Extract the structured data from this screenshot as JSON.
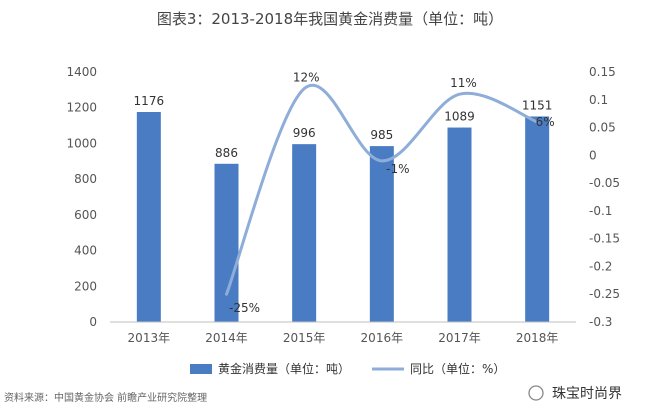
{
  "chart_data": {
    "type": "bar+line",
    "title": "图表3：2013-2018年我国黄金消费量（单位：吨）",
    "categories": [
      "2013年",
      "2014年",
      "2015年",
      "2016年",
      "2017年",
      "2018年"
    ],
    "series": [
      {
        "name": "黄金消费量（单位：吨）",
        "type": "bar",
        "axis": "left",
        "values": [
          1176,
          886,
          996,
          985,
          1089,
          1151
        ],
        "labels": [
          "1176",
          "886",
          "996",
          "985",
          "1089",
          "1151"
        ],
        "color": "#4a7cc4"
      },
      {
        "name": "同比（单位：%）",
        "type": "line",
        "axis": "right",
        "values": [
          null,
          -0.25,
          0.12,
          -0.01,
          0.11,
          0.06
        ],
        "labels": [
          "",
          "-25%",
          "12%",
          "-1%",
          "11%",
          "6%"
        ],
        "color": "#8fadd9"
      }
    ],
    "y_left": {
      "min": 0,
      "max": 1400,
      "step": 200,
      "ticks": [
        "0",
        "200",
        "400",
        "600",
        "800",
        "1000",
        "1200",
        "1400"
      ]
    },
    "y_right": {
      "min": -0.3,
      "max": 0.15,
      "ticks": [
        "-0.3",
        "-0.25",
        "-0.2",
        "-0.15",
        "-0.1",
        "-0.05",
        "0",
        "0.05",
        "0.1",
        "0.15"
      ]
    },
    "grid": false,
    "legend_position": "bottom"
  },
  "footer": {
    "source": "资料来源：中国黄金协会 前瞻产业研究院整理",
    "brand": "珠宝时尚界"
  }
}
